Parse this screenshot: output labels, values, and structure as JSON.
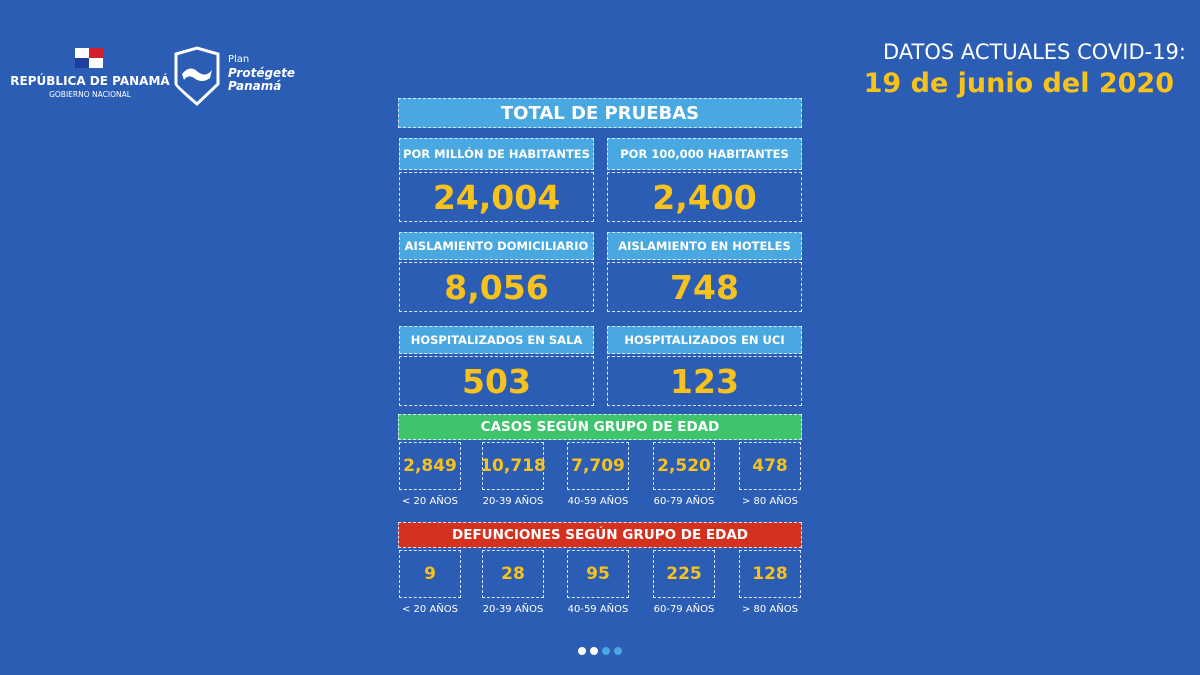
{
  "header": {
    "republic": "REPÚBLICA DE PANAMÁ",
    "government": "GOBIERNO NACIONAL",
    "plan": "Plan",
    "protegete": "Protégete",
    "panama": "Panamá",
    "title": "DATOS ACTUALES COVID-19:",
    "date": "19 de junio del 2020"
  },
  "tests": {
    "title": "TOTAL DE PRUEBAS",
    "cells": [
      {
        "label": "POR MILLÓN DE HABITANTES",
        "value": "24,004"
      },
      {
        "label": "POR 100,000 HABITANTES",
        "value": "2,400"
      },
      {
        "label": "AISLAMIENTO DOMICILIARIO",
        "value": "8,056"
      },
      {
        "label": "AISLAMIENTO EN HOTELES",
        "value": "748"
      },
      {
        "label": "HOSPITALIZADOS EN SALA",
        "value": "503"
      },
      {
        "label": "HOSPITALIZADOS EN UCI",
        "value": "123"
      }
    ]
  },
  "cases": {
    "title": "CASOS SEGÚN GRUPO DE EDAD",
    "groups": [
      {
        "value": "2,849",
        "label": "< 20 AÑOS"
      },
      {
        "value": "10,718",
        "label": "20-39 AÑOS"
      },
      {
        "value": "7,709",
        "label": "40-59 AÑOS"
      },
      {
        "value": "2,520",
        "label": "60-79 AÑOS"
      },
      {
        "value": "478",
        "label": "> 80 AÑOS"
      }
    ]
  },
  "deaths": {
    "title": "DEFUNCIONES SEGÚN GRUPO DE EDAD",
    "groups": [
      {
        "value": "9",
        "label": "< 20 AÑOS"
      },
      {
        "value": "28",
        "label": "20-39 AÑOS"
      },
      {
        "value": "95",
        "label": "40-59 AÑOS"
      },
      {
        "value": "225",
        "label": "60-79 AÑOS"
      },
      {
        "value": "128",
        "label": "> 80 AÑOS"
      }
    ]
  }
}
